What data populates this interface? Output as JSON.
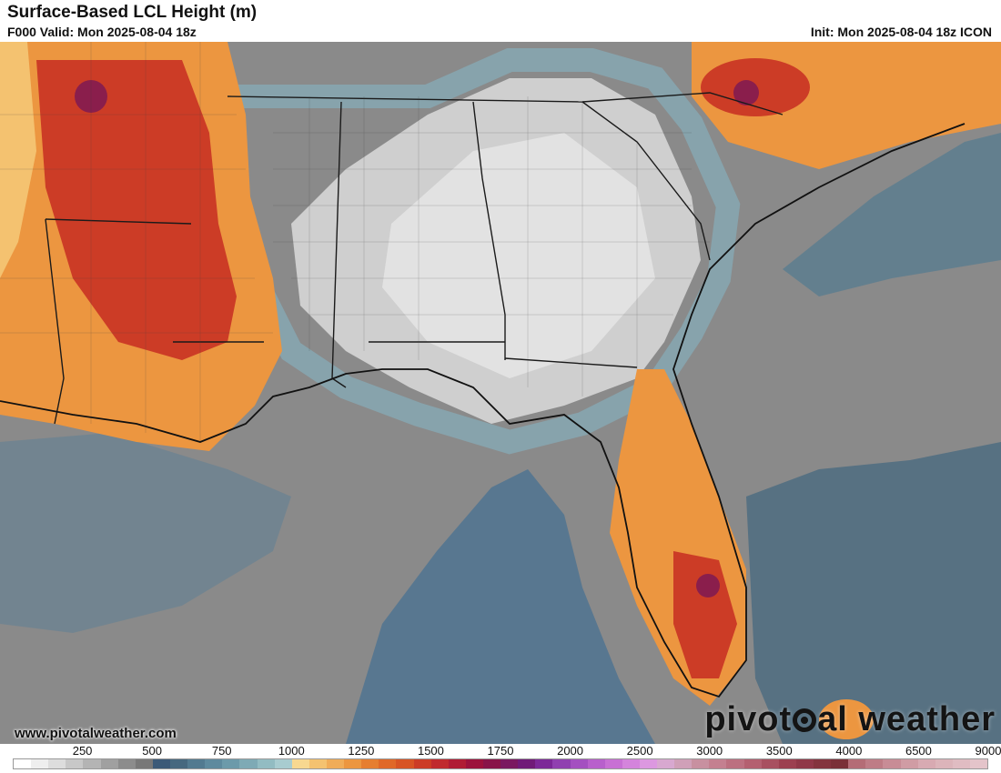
{
  "header": {
    "title": "Surface-Based LCL Height (m)",
    "valid": "F000 Valid: Mon 2025-08-04 18z",
    "init": "Init: Mon 2025-08-04 18z ICON"
  },
  "branding": {
    "website": "www.pivotalweather.com",
    "logo_left": "pivot",
    "logo_right": "al weather"
  },
  "colorbar": {
    "labels": [
      "250",
      "500",
      "750",
      "1000",
      "1250",
      "1500",
      "1750",
      "2000",
      "2500",
      "3000",
      "3500",
      "4000",
      "6500",
      "9000"
    ],
    "colors": [
      "#ffffff",
      "#eeeeee",
      "#dddddd",
      "#c8c8c8",
      "#b4b4b4",
      "#a0a0a0",
      "#8c8c8c",
      "#787878",
      "#3c5a78",
      "#46687f",
      "#527a90",
      "#5e8a9e",
      "#6c9aaa",
      "#7eaab5",
      "#92bcc2",
      "#a8ccd0",
      "#f8d890",
      "#f4c270",
      "#f0ac58",
      "#ec9640",
      "#e67e30",
      "#e06828",
      "#d85424",
      "#cc3c26",
      "#c02a2e",
      "#b01c34",
      "#9c123c",
      "#881448",
      "#7a1860",
      "#701a78",
      "#7c2898",
      "#9040b0",
      "#a450c0",
      "#b860cc",
      "#c870d4",
      "#d484dc",
      "#dc98e0",
      "#d8a8d0",
      "#d0a0b8",
      "#c890a0",
      "#c48090",
      "#bc7080",
      "#b46070",
      "#a85060",
      "#9c4050",
      "#903848",
      "#84343e",
      "#7a3038",
      "#b46c76",
      "#be7c86",
      "#c88c96",
      "#d09ca4",
      "#d8aab2",
      "#dcb4ba",
      "#e0bcc2",
      "#e4c4ca"
    ]
  }
}
